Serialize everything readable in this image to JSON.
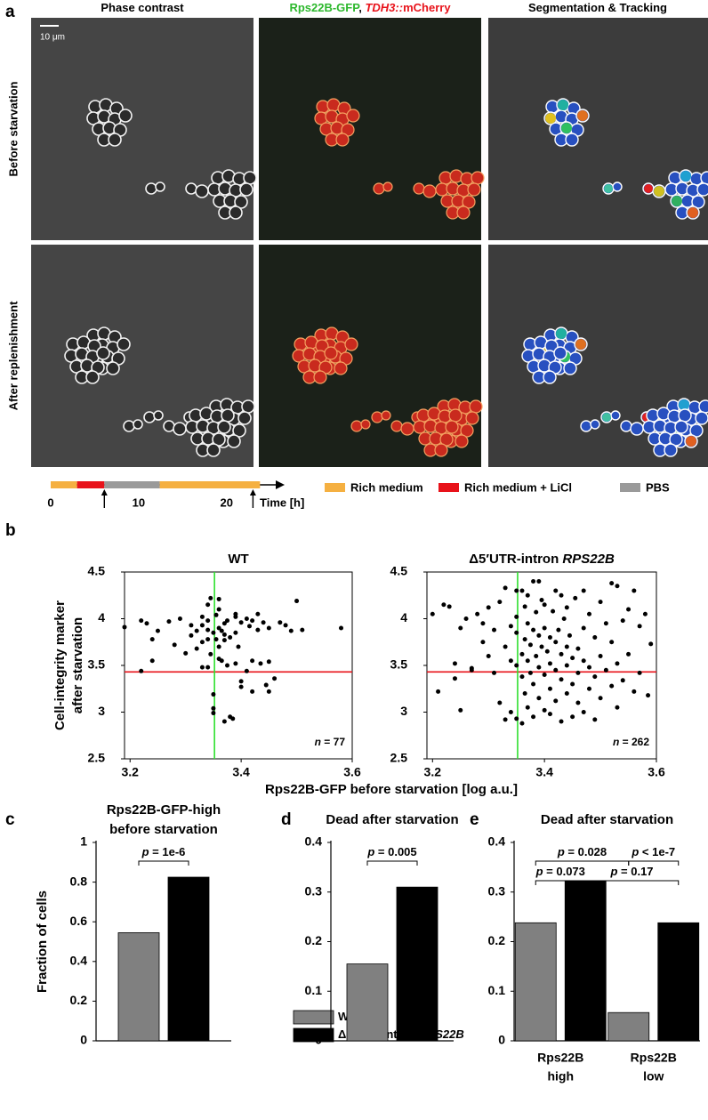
{
  "panel_labels": [
    "a",
    "b",
    "c",
    "d",
    "e"
  ],
  "panel_a": {
    "column_titles": [
      [
        "Phase contrast"
      ],
      [
        "Rps22B-GFP",
        ", ",
        "TDH3::",
        "mCherry"
      ],
      [
        "Segmentation & Tracking"
      ]
    ],
    "row_titles": [
      "Before starvation",
      "After replenishment"
    ],
    "scale_bar": "10 μm"
  },
  "timeline": {
    "xlabel": "Time [h]",
    "xlim": [
      0,
      26.6
    ],
    "xticks": [
      0,
      10,
      20
    ],
    "segments": [
      {
        "start": 0,
        "end": 3,
        "color": "#f5b041"
      },
      {
        "start": 3,
        "end": 6.1,
        "color": "#e8121a"
      },
      {
        "start": 6.1,
        "end": 12.4,
        "color": "#9a9a9a"
      },
      {
        "start": 12.4,
        "end": 23.8,
        "color": "#f5b041"
      }
    ],
    "arrows": [
      6.1,
      23
    ],
    "legend": [
      {
        "name": "Rich medium",
        "color": "#f5b041"
      },
      {
        "name": "Rich medium + LiCl",
        "color": "#e8121a"
      },
      {
        "name": "PBS",
        "color": "#9a9a9a"
      }
    ]
  },
  "panel_b": {
    "xlabel": "Rps22B-GFP before starvation [log a.u.]",
    "ylabel": [
      "Cell-integrity marker",
      "after starvation"
    ]
  },
  "bar_legend": [
    {
      "name": "WT",
      "color": "#808080"
    },
    {
      "name": "Δ5′UTR-intron ",
      "name_italic": "RPS22B",
      "color": "#000000"
    }
  ],
  "chart_data": [
    {
      "type": "scatter",
      "title": "WT",
      "annotation": [
        "n",
        " = 77"
      ],
      "color": "#000000",
      "xlim": [
        3.19,
        3.6
      ],
      "ylim": [
        2.5,
        4.5
      ],
      "xticks": [
        3.2,
        3.4,
        3.6
      ],
      "yticks": [
        2.5,
        3,
        3.5,
        4,
        4.5
      ],
      "hline": 3.43,
      "hline_color": "#e8121a",
      "vline": 3.352,
      "vline_color": "#2ee02e",
      "x": [
        3.19,
        3.22,
        3.23,
        3.24,
        3.25,
        3.22,
        3.24,
        3.27,
        3.28,
        3.29,
        3.3,
        3.31,
        3.31,
        3.32,
        3.32,
        3.33,
        3.33,
        3.33,
        3.34,
        3.34,
        3.34,
        3.34,
        3.345,
        3.345,
        3.35,
        3.35,
        3.35,
        3.35,
        3.355,
        3.355,
        3.36,
        3.36,
        3.36,
        3.36,
        3.365,
        3.365,
        3.37,
        3.37,
        3.37,
        3.375,
        3.375,
        3.38,
        3.38,
        3.385,
        3.39,
        3.39,
        3.39,
        3.395,
        3.4,
        3.4,
        3.4,
        3.41,
        3.41,
        3.415,
        3.42,
        3.42,
        3.42,
        3.43,
        3.43,
        3.435,
        3.44,
        3.445,
        3.45,
        3.45,
        3.46,
        3.47,
        3.48,
        3.49,
        3.5,
        3.51,
        3.58,
        3.33,
        3.36,
        3.39,
        3.34,
        3.37,
        3.45
      ],
      "values": [
        3.91,
        3.98,
        3.95,
        3.78,
        3.87,
        3.44,
        3.55,
        3.97,
        3.72,
        4.0,
        3.63,
        3.93,
        3.82,
        3.68,
        3.87,
        3.93,
        3.75,
        4.02,
        3.78,
        3.48,
        4.15,
        3.98,
        4.22,
        3.62,
        3.85,
        3.19,
        2.99,
        3.04,
        4.04,
        3.78,
        4.1,
        3.57,
        3.9,
        4.21,
        3.87,
        3.55,
        3.95,
        3.77,
        2.9,
        3.98,
        3.5,
        3.8,
        2.95,
        2.93,
        4.02,
        3.85,
        3.52,
        3.7,
        3.96,
        3.33,
        3.27,
        4.0,
        3.44,
        3.92,
        3.55,
        3.98,
        3.22,
        4.05,
        3.88,
        3.52,
        3.96,
        3.29,
        3.9,
        3.22,
        3.36,
        3.96,
        3.93,
        3.87,
        4.19,
        3.88,
        3.9,
        3.48,
        3.7,
        4.05,
        3.88,
        3.83,
        3.54
      ]
    },
    {
      "type": "scatter",
      "title": "Δ5′UTR-intron ",
      "title_italic": "RPS22B",
      "annotation": [
        "n",
        " = 262"
      ],
      "color": "#000000",
      "xlim": [
        3.19,
        3.6
      ],
      "ylim": [
        2.5,
        4.5
      ],
      "xticks": [
        3.2,
        3.4,
        3.6
      ],
      "yticks": [
        2.5,
        3,
        3.5,
        4,
        4.5
      ],
      "hline": 3.43,
      "hline_color": "#e8121a",
      "vline": 3.352,
      "vline_color": "#2ee02e",
      "x": [
        3.2,
        3.21,
        3.22,
        3.23,
        3.24,
        3.24,
        3.25,
        3.25,
        3.26,
        3.27,
        3.27,
        3.28,
        3.29,
        3.29,
        3.3,
        3.3,
        3.31,
        3.31,
        3.32,
        3.32,
        3.33,
        3.33,
        3.33,
        3.34,
        3.34,
        3.34,
        3.35,
        3.35,
        3.35,
        3.35,
        3.36,
        3.36,
        3.36,
        3.36,
        3.365,
        3.365,
        3.365,
        3.37,
        3.37,
        3.37,
        3.37,
        3.375,
        3.375,
        3.38,
        3.38,
        3.38,
        3.38,
        3.385,
        3.385,
        3.39,
        3.39,
        3.39,
        3.395,
        3.395,
        3.4,
        3.4,
        3.4,
        3.4,
        3.405,
        3.41,
        3.41,
        3.41,
        3.41,
        3.415,
        3.42,
        3.42,
        3.42,
        3.42,
        3.425,
        3.43,
        3.43,
        3.43,
        3.435,
        3.44,
        3.44,
        3.44,
        3.44,
        3.445,
        3.45,
        3.45,
        3.45,
        3.455,
        3.46,
        3.46,
        3.46,
        3.47,
        3.47,
        3.47,
        3.48,
        3.48,
        3.48,
        3.49,
        3.49,
        3.49,
        3.5,
        3.5,
        3.5,
        3.51,
        3.51,
        3.52,
        3.52,
        3.52,
        3.53,
        3.53,
        3.54,
        3.54,
        3.55,
        3.55,
        3.56,
        3.57,
        3.57,
        3.58,
        3.59,
        3.585,
        3.56,
        3.53,
        3.47,
        3.43,
        3.39,
        3.35
      ],
      "values": [
        4.05,
        3.22,
        4.15,
        4.13,
        3.52,
        3.36,
        3.02,
        3.9,
        4.0,
        3.45,
        3.47,
        4.05,
        3.95,
        3.75,
        4.12,
        3.6,
        3.88,
        3.42,
        4.18,
        3.1,
        2.92,
        4.33,
        3.7,
        3.92,
        3.55,
        3.0,
        4.02,
        3.5,
        3.85,
        2.93,
        4.3,
        3.62,
        3.38,
        2.88,
        4.13,
        3.78,
        3.2,
        4.25,
        3.95,
        3.55,
        3.05,
        3.72,
        3.42,
        4.4,
        3.88,
        3.3,
        2.95,
        4.07,
        3.6,
        3.82,
        3.48,
        3.15,
        4.2,
        3.7,
        3.9,
        3.4,
        3.02,
        4.15,
        3.65,
        3.8,
        3.52,
        3.25,
        2.98,
        4.08,
        3.75,
        3.45,
        3.12,
        4.3,
        3.88,
        3.62,
        3.35,
        2.9,
        4.0,
        3.7,
        3.5,
        3.2,
        4.12,
        3.82,
        3.58,
        3.3,
        2.95,
        4.22,
        3.68,
        3.42,
        3.1,
        3.9,
        3.55,
        3.0,
        4.05,
        3.48,
        3.25,
        3.8,
        3.38,
        2.92,
        4.18,
        3.6,
        3.15,
        3.95,
        3.45,
        3.75,
        3.28,
        4.38,
        3.52,
        3.05,
        3.98,
        3.34,
        4.1,
        3.62,
        3.22,
        3.92,
        3.42,
        4.05,
        3.73,
        3.18,
        4.3,
        4.35,
        4.3,
        4.25,
        4.4,
        4.3
      ]
    },
    {
      "type": "bar",
      "title": [
        "Rps22B-GFP-high",
        "before starvation"
      ],
      "ylabel": "Fraction of cells",
      "categories": [
        null
      ],
      "ylim": [
        0,
        1
      ],
      "yticks": [
        0,
        0.2,
        0.4,
        0.6,
        0.8,
        1
      ],
      "series": [
        {
          "values": [
            0.545
          ]
        },
        {
          "values": [
            0.825
          ]
        }
      ],
      "comparisons": [
        [
          "p",
          " = 1e-6"
        ]
      ]
    },
    {
      "type": "bar",
      "title": "Dead after starvation",
      "categories": [
        null
      ],
      "ylim": [
        0,
        0.4
      ],
      "yticks": [
        0,
        0.1,
        0.2,
        0.3,
        0.4
      ],
      "series": [
        {
          "values": [
            0.155
          ]
        },
        {
          "values": [
            0.31
          ]
        }
      ],
      "comparisons": [
        [
          "p",
          " = 0.005"
        ]
      ]
    },
    {
      "type": "bar",
      "title": "Dead after starvation",
      "categories": [
        [
          "Rps22B",
          "high"
        ],
        [
          "Rps22B",
          "low"
        ]
      ],
      "ylim": [
        0,
        0.4
      ],
      "yticks": [
        0,
        0.1,
        0.2,
        0.3,
        0.4
      ],
      "series": [
        {
          "values": [
            0.238,
            0.057
          ]
        },
        {
          "values": [
            0.323,
            0.238
          ]
        }
      ],
      "comparisons": [
        [
          "p",
          " = 0.028"
        ],
        [
          "p",
          " = 0.073"
        ],
        [
          "p",
          " < 1e-7"
        ],
        [
          "p",
          " = 0.17"
        ]
      ]
    }
  ]
}
